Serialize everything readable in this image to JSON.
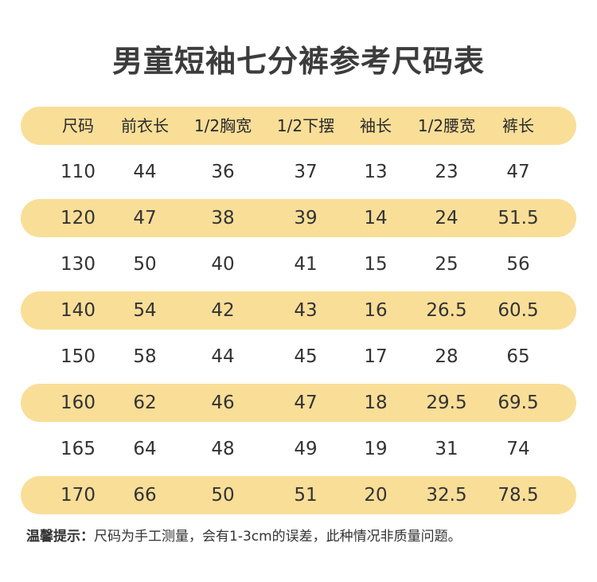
{
  "title": "男童短袖七分裤参考尺码表",
  "table": {
    "headers": [
      "尺码",
      "前衣长",
      "1/2胸宽",
      "1/2下摆",
      "袖长",
      "1/2腰宽",
      "裤长"
    ],
    "rows": [
      [
        "110",
        "44",
        "36",
        "37",
        "13",
        "23",
        "47"
      ],
      [
        "120",
        "47",
        "38",
        "39",
        "14",
        "24",
        "51.5"
      ],
      [
        "130",
        "50",
        "40",
        "41",
        "15",
        "25",
        "56"
      ],
      [
        "140",
        "54",
        "42",
        "43",
        "16",
        "26.5",
        "60.5"
      ],
      [
        "150",
        "58",
        "44",
        "45",
        "17",
        "28",
        "65"
      ],
      [
        "160",
        "62",
        "46",
        "47",
        "18",
        "29.5",
        "69.5"
      ],
      [
        "165",
        "64",
        "48",
        "49",
        "19",
        "31",
        "74"
      ],
      [
        "170",
        "66",
        "50",
        "51",
        "20",
        "32.5",
        "78.5"
      ]
    ]
  },
  "footer": {
    "lead": "温馨提示：",
    "text": "尺码为手工测量，会有1-3cm的误差，此种情况非质量问题。"
  },
  "colors": {
    "row_highlight": "#f9de98",
    "title_text": "#3c3c3c"
  }
}
